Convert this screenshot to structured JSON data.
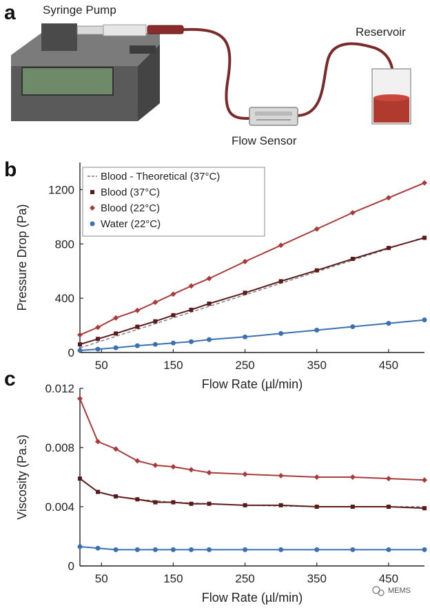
{
  "panels": {
    "a": {
      "letter": "a",
      "labels": {
        "pump": "Syringe Pump",
        "sensor": "Flow Sensor",
        "reservoir": "Reservoir"
      },
      "colors": {
        "tube": "#7a2a2a",
        "fluid": "#b03a2e",
        "pump_body": "#5a5a5a",
        "screen": "#6f8a68"
      }
    },
    "b": {
      "letter": "b"
    },
    "c": {
      "letter": "c"
    }
  },
  "watermark": "MEMS",
  "chart_data": [
    {
      "panel": "b",
      "type": "line",
      "title": "",
      "xlabel": "Flow Rate (µl/min)",
      "ylabel": "Pressure Drop (Pa)",
      "xlim": [
        20,
        500
      ],
      "ylim": [
        0,
        1400
      ],
      "xticks": [
        50,
        150,
        250,
        350,
        450
      ],
      "yticks": [
        0,
        400,
        800,
        1200
      ],
      "grid": false,
      "legend_position": "top-left",
      "series": [
        {
          "name": "Blood - Theoretical (37°C)",
          "kind": "line",
          "color": "#777777",
          "dashed": true,
          "x": [
            20,
            500
          ],
          "y": [
            34,
            850
          ]
        },
        {
          "name": "Blood (37°C)",
          "kind": "scatter+fit",
          "color": "#5a1a1a",
          "marker": "square",
          "x": [
            20,
            45,
            70,
            100,
            125,
            150,
            175,
            200,
            250,
            300,
            350,
            400,
            450,
            500
          ],
          "y": [
            60,
            100,
            140,
            190,
            230,
            275,
            315,
            360,
            440,
            525,
            605,
            690,
            770,
            845
          ]
        },
        {
          "name": "Blood (22°C)",
          "kind": "scatter+fit",
          "color": "#a83a3a",
          "marker": "diamond",
          "x": [
            20,
            45,
            70,
            100,
            125,
            150,
            175,
            200,
            250,
            300,
            350,
            400,
            450,
            500
          ],
          "y": [
            130,
            185,
            255,
            310,
            370,
            430,
            490,
            545,
            670,
            790,
            910,
            1030,
            1140,
            1250
          ]
        },
        {
          "name": "Water (22°C)",
          "kind": "scatter+fit",
          "color": "#3a6fb0",
          "marker": "circle",
          "x": [
            20,
            45,
            70,
            100,
            125,
            150,
            175,
            200,
            250,
            300,
            350,
            400,
            450,
            500
          ],
          "y": [
            15,
            25,
            35,
            50,
            60,
            70,
            80,
            95,
            115,
            140,
            165,
            190,
            215,
            240
          ]
        }
      ]
    },
    {
      "panel": "c",
      "type": "line",
      "title": "",
      "xlabel": "Flow Rate (µl/min)",
      "ylabel": "Viscosity (Pa.s)",
      "xlim": [
        20,
        500
      ],
      "ylim": [
        0,
        0.012
      ],
      "xticks": [
        50,
        150,
        250,
        350,
        450
      ],
      "yticks": [
        0,
        0.004,
        0.008,
        0.012
      ],
      "ytick_labels": [
        "0",
        "0.004",
        "0.008",
        "0.012"
      ],
      "grid": false,
      "series": [
        {
          "name": "Blood - Theoretical (37°C)",
          "kind": "line",
          "color": "#777777",
          "dashed": true,
          "x": [
            20,
            45,
            70,
            100,
            125,
            150,
            175,
            200,
            250,
            300,
            350,
            400,
            450,
            500
          ],
          "y": [
            0.0059,
            0.005,
            0.0047,
            0.0045,
            0.0044,
            0.0043,
            0.00425,
            0.0042,
            0.0041,
            0.00405,
            0.004,
            0.004,
            0.004,
            0.004
          ]
        },
        {
          "name": "Blood (37°C)",
          "kind": "scatter+fit",
          "color": "#5a1a1a",
          "marker": "square",
          "x": [
            20,
            45,
            70,
            100,
            125,
            150,
            175,
            200,
            250,
            300,
            350,
            400,
            450,
            500
          ],
          "y": [
            0.0059,
            0.005,
            0.0047,
            0.0045,
            0.0043,
            0.0043,
            0.0042,
            0.0042,
            0.0041,
            0.0041,
            0.004,
            0.004,
            0.004,
            0.0039
          ]
        },
        {
          "name": "Blood (22°C)",
          "kind": "scatter+fit",
          "color": "#a83a3a",
          "marker": "diamond",
          "x": [
            20,
            45,
            70,
            100,
            125,
            150,
            175,
            200,
            250,
            300,
            350,
            400,
            450,
            500
          ],
          "y": [
            0.0113,
            0.0084,
            0.0079,
            0.0071,
            0.0068,
            0.0067,
            0.0065,
            0.0063,
            0.0062,
            0.0061,
            0.006,
            0.006,
            0.0059,
            0.0058
          ]
        },
        {
          "name": "Water (22°C)",
          "kind": "scatter+fit",
          "color": "#3a6fb0",
          "marker": "circle",
          "x": [
            20,
            45,
            70,
            100,
            125,
            150,
            175,
            200,
            250,
            300,
            350,
            400,
            450,
            500
          ],
          "y": [
            0.0013,
            0.0012,
            0.0011,
            0.0011,
            0.0011,
            0.0011,
            0.0011,
            0.0011,
            0.0011,
            0.0011,
            0.0011,
            0.0011,
            0.0011,
            0.0011
          ]
        }
      ]
    }
  ]
}
